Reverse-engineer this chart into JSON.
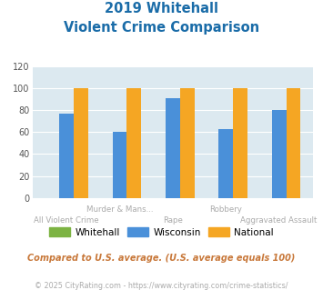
{
  "title_line1": "2019 Whitehall",
  "title_line2": "Violent Crime Comparison",
  "categories": [
    "All Violent Crime",
    "Murder & Mans...",
    "Rape",
    "Robbery",
    "Aggravated Assault"
  ],
  "whitehall": [
    0,
    0,
    0,
    0,
    0
  ],
  "wisconsin": [
    77,
    60,
    91,
    63,
    80
  ],
  "national": [
    100,
    100,
    100,
    100,
    100
  ],
  "colors": {
    "whitehall": "#7cb342",
    "wisconsin": "#4a90d9",
    "national": "#f5a623"
  },
  "ylim": [
    0,
    120
  ],
  "yticks": [
    0,
    20,
    40,
    60,
    80,
    100,
    120
  ],
  "legend_labels": [
    "Whitehall",
    "Wisconsin",
    "National"
  ],
  "footnote1": "Compared to U.S. average. (U.S. average equals 100)",
  "footnote2": "© 2025 CityRating.com - https://www.cityrating.com/crime-statistics/",
  "title_color": "#1a6ca8",
  "footnote1_color": "#c8783a",
  "footnote2_color": "#aaaaaa",
  "plot_bg": "#dce9f0",
  "label_color": "#aaaaaa"
}
